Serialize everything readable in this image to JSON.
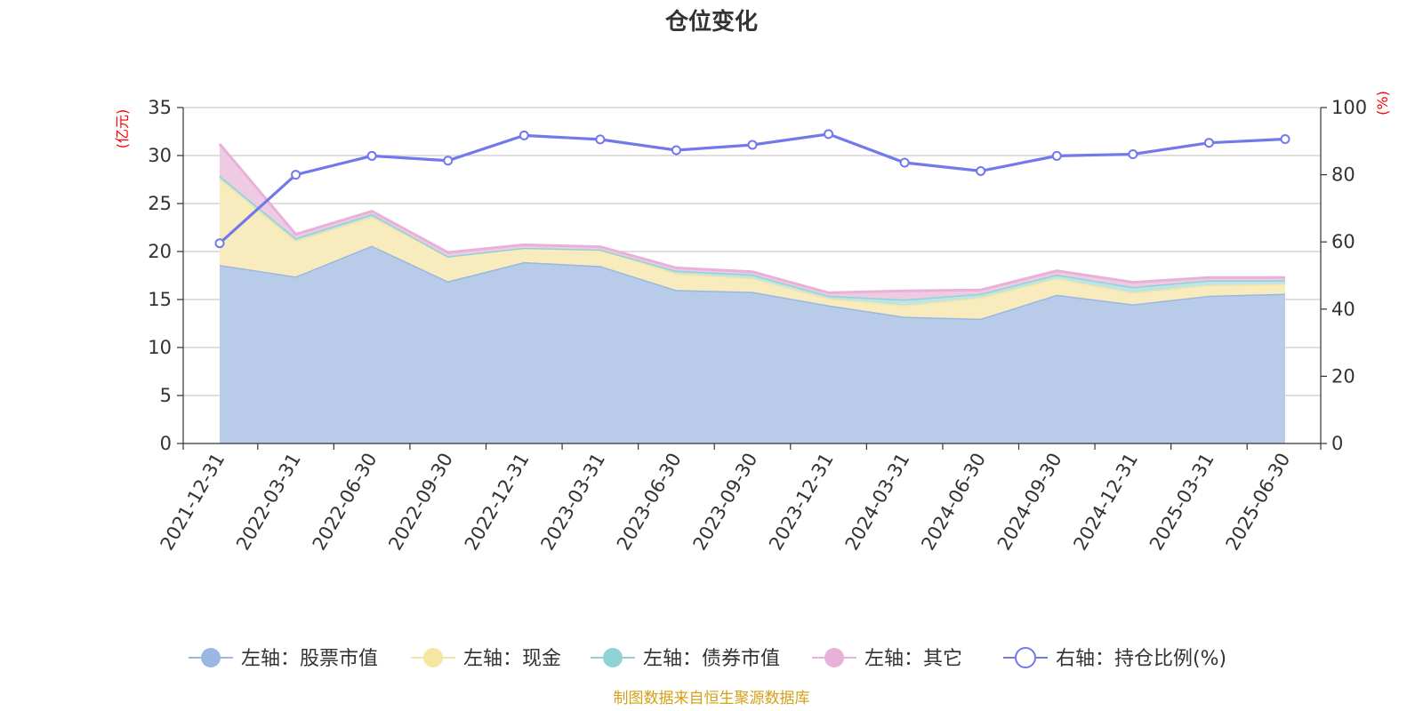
{
  "chart_data": {
    "type": "area",
    "title": "仓位变化",
    "left_axis_unit": "(亿元)",
    "right_axis_unit": "(%)",
    "categories": [
      "2021-12-31",
      "2022-03-31",
      "2022-06-30",
      "2022-09-30",
      "2022-12-31",
      "2023-03-31",
      "2023-06-30",
      "2023-09-30",
      "2023-12-31",
      "2024-03-31",
      "2024-06-30",
      "2024-09-30",
      "2024-12-31",
      "2025-03-31",
      "2025-06-30"
    ],
    "left_yticks": [
      "0",
      "5",
      "10",
      "15",
      "20",
      "25",
      "30",
      "35"
    ],
    "right_yticks": [
      "0",
      "20",
      "40",
      "60",
      "80",
      "100"
    ],
    "ylim_left": [
      0,
      35
    ],
    "ylim_right": [
      0,
      100
    ],
    "grid": true,
    "legend_position": "bottom",
    "stacked": true,
    "series": [
      {
        "name": "左轴：股票市值",
        "axis": "left",
        "kind": "area",
        "color": "#9bb7e0",
        "fill": "#b8cce9",
        "values": [
          18.6,
          17.4,
          20.6,
          16.9,
          18.9,
          18.5,
          16.0,
          15.8,
          14.4,
          13.2,
          13.0,
          15.5,
          14.5,
          15.4,
          15.6
        ]
      },
      {
        "name": "左轴：现金",
        "axis": "left",
        "kind": "area",
        "color": "#f5e6a3",
        "fill": "#f8ecbe",
        "values": [
          9.0,
          3.7,
          3.0,
          2.6,
          1.5,
          1.7,
          1.7,
          1.4,
          0.7,
          1.2,
          2.2,
          1.7,
          1.2,
          1.1,
          1.0
        ]
      },
      {
        "name": "左轴：债券市值",
        "axis": "left",
        "kind": "area",
        "color": "#8fd3d6",
        "fill": "#bfe4e5",
        "values": [
          0.3,
          0.3,
          0.3,
          0.0,
          0.0,
          0.0,
          0.3,
          0.4,
          0.3,
          0.6,
          0.4,
          0.4,
          0.6,
          0.5,
          0.4
        ]
      },
      {
        "name": "左轴：其它",
        "axis": "left",
        "kind": "area",
        "color": "#e8b2d8",
        "fill": "#eecbe2",
        "values": [
          3.3,
          0.4,
          0.3,
          0.4,
          0.3,
          0.3,
          0.3,
          0.3,
          0.3,
          0.9,
          0.4,
          0.4,
          0.5,
          0.3,
          0.3
        ]
      },
      {
        "name": "右轴：持仓比例(%)",
        "axis": "right",
        "kind": "line",
        "color": "#7179eb",
        "values": [
          59.6,
          80.0,
          85.6,
          84.2,
          91.7,
          90.5,
          87.3,
          88.9,
          92.1,
          83.6,
          81.1,
          85.6,
          86.1,
          89.5,
          90.6
        ]
      }
    ],
    "source_note": "制图数据来自恒生聚源数据库"
  }
}
